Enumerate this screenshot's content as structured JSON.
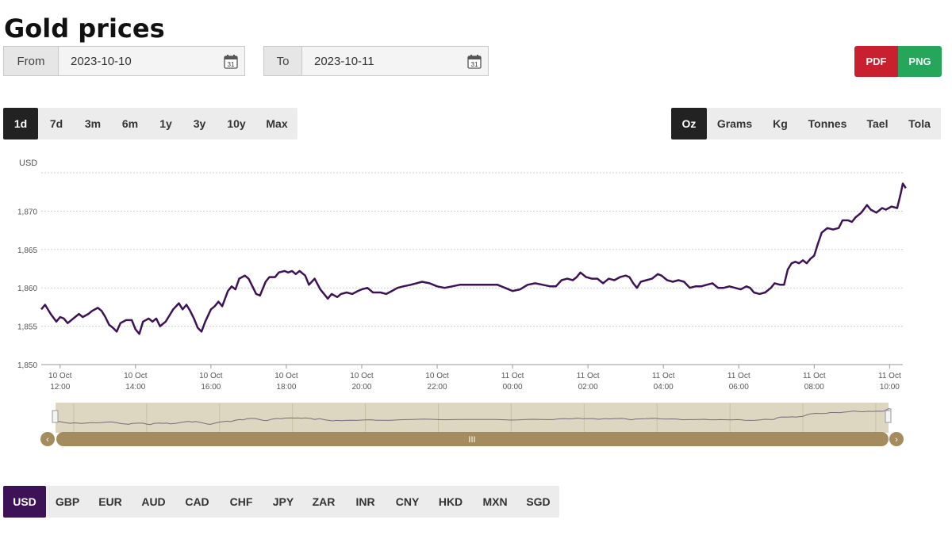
{
  "page": {
    "title": "Gold prices"
  },
  "date_range": {
    "from_label": "From",
    "from_value": "2023-10-10",
    "to_label": "To",
    "to_value": "2023-10-11",
    "calendar_day": "31"
  },
  "export": {
    "pdf_label": "PDF",
    "png_label": "PNG"
  },
  "periods": {
    "items": [
      "1d",
      "7d",
      "3m",
      "6m",
      "1y",
      "3y",
      "10y",
      "Max"
    ],
    "active": "1d"
  },
  "units": {
    "items": [
      "Oz",
      "Grams",
      "Kg",
      "Tonnes",
      "Tael",
      "Tola"
    ],
    "active": "Oz"
  },
  "currencies": {
    "items": [
      "USD",
      "GBP",
      "EUR",
      "AUD",
      "CAD",
      "CHF",
      "JPY",
      "ZAR",
      "INR",
      "CNY",
      "HKD",
      "MXN",
      "SGD"
    ],
    "active": "USD"
  },
  "navigator": {
    "handle_label": "III",
    "left_arrow": "‹",
    "right_arrow": "›"
  },
  "chart_data": {
    "type": "line",
    "ylabel": "USD",
    "ylim": [
      1850,
      1875
    ],
    "yticks": [
      1850,
      1855,
      1860,
      1865,
      1870
    ],
    "ytick_labels": [
      "1,850",
      "1,855",
      "1,860",
      "1,865",
      "1,870"
    ],
    "xlim": [
      11.5,
      34.35
    ],
    "xticks": [
      {
        "t": 12,
        "date": "10 Oct",
        "time": "12:00"
      },
      {
        "t": 14,
        "date": "10 Oct",
        "time": "14:00"
      },
      {
        "t": 16,
        "date": "10 Oct",
        "time": "16:00"
      },
      {
        "t": 18,
        "date": "10 Oct",
        "time": "18:00"
      },
      {
        "t": 20,
        "date": "10 Oct",
        "time": "20:00"
      },
      {
        "t": 22,
        "date": "10 Oct",
        "time": "22:00"
      },
      {
        "t": 24,
        "date": "11 Oct",
        "time": "00:00"
      },
      {
        "t": 26,
        "date": "11 Oct",
        "time": "02:00"
      },
      {
        "t": 28,
        "date": "11 Oct",
        "time": "04:00"
      },
      {
        "t": 30,
        "date": "11 Oct",
        "time": "06:00"
      },
      {
        "t": 32,
        "date": "11 Oct",
        "time": "08:00"
      },
      {
        "t": 34,
        "date": "11 Oct",
        "time": "10:00"
      }
    ],
    "grid": true,
    "series": [
      {
        "color": "#3d1257",
        "points": [
          [
            11.5,
            1857.2
          ],
          [
            11.6,
            1857.8
          ],
          [
            11.75,
            1856.6
          ],
          [
            11.9,
            1855.6
          ],
          [
            12.0,
            1856.2
          ],
          [
            12.1,
            1856.0
          ],
          [
            12.2,
            1855.4
          ],
          [
            12.35,
            1856.0
          ],
          [
            12.5,
            1856.6
          ],
          [
            12.6,
            1856.2
          ],
          [
            12.75,
            1856.6
          ],
          [
            12.85,
            1857.0
          ],
          [
            13.0,
            1857.4
          ],
          [
            13.1,
            1857.0
          ],
          [
            13.2,
            1856.2
          ],
          [
            13.3,
            1855.2
          ],
          [
            13.4,
            1854.8
          ],
          [
            13.5,
            1854.3
          ],
          [
            13.6,
            1855.4
          ],
          [
            13.75,
            1855.8
          ],
          [
            13.9,
            1855.8
          ],
          [
            14.0,
            1854.6
          ],
          [
            14.1,
            1854.0
          ],
          [
            14.2,
            1855.6
          ],
          [
            14.35,
            1856.0
          ],
          [
            14.45,
            1855.6
          ],
          [
            14.55,
            1856.0
          ],
          [
            14.65,
            1855.0
          ],
          [
            14.8,
            1855.6
          ],
          [
            14.9,
            1856.4
          ],
          [
            15.0,
            1857.2
          ],
          [
            15.15,
            1858.0
          ],
          [
            15.25,
            1857.2
          ],
          [
            15.35,
            1857.8
          ],
          [
            15.45,
            1857.0
          ],
          [
            15.55,
            1856.0
          ],
          [
            15.65,
            1854.8
          ],
          [
            15.75,
            1854.3
          ],
          [
            15.85,
            1855.6
          ],
          [
            16.0,
            1857.2
          ],
          [
            16.1,
            1857.6
          ],
          [
            16.2,
            1858.2
          ],
          [
            16.3,
            1857.6
          ],
          [
            16.45,
            1859.6
          ],
          [
            16.55,
            1860.2
          ],
          [
            16.65,
            1859.8
          ],
          [
            16.75,
            1861.2
          ],
          [
            16.9,
            1861.6
          ],
          [
            17.0,
            1861.2
          ],
          [
            17.1,
            1860.2
          ],
          [
            17.2,
            1859.2
          ],
          [
            17.3,
            1859.0
          ],
          [
            17.45,
            1860.8
          ],
          [
            17.55,
            1861.4
          ],
          [
            17.7,
            1861.4
          ],
          [
            17.8,
            1862.0
          ],
          [
            17.95,
            1862.2
          ],
          [
            18.05,
            1862.0
          ],
          [
            18.15,
            1862.2
          ],
          [
            18.25,
            1861.8
          ],
          [
            18.35,
            1862.2
          ],
          [
            18.5,
            1861.6
          ],
          [
            18.6,
            1860.4
          ],
          [
            18.75,
            1861.2
          ],
          [
            18.9,
            1859.8
          ],
          [
            19.0,
            1859.2
          ],
          [
            19.1,
            1858.6
          ],
          [
            19.2,
            1859.2
          ],
          [
            19.35,
            1858.8
          ],
          [
            19.45,
            1859.2
          ],
          [
            19.6,
            1859.4
          ],
          [
            19.75,
            1859.2
          ],
          [
            19.9,
            1859.6
          ],
          [
            20.0,
            1859.8
          ],
          [
            20.15,
            1860.0
          ],
          [
            20.3,
            1859.4
          ],
          [
            20.5,
            1859.4
          ],
          [
            20.65,
            1859.2
          ],
          [
            20.8,
            1859.6
          ],
          [
            20.95,
            1860.0
          ],
          [
            21.1,
            1860.2
          ],
          [
            21.3,
            1860.4
          ],
          [
            21.45,
            1860.6
          ],
          [
            21.6,
            1860.8
          ],
          [
            21.8,
            1860.6
          ],
          [
            22.0,
            1860.2
          ],
          [
            22.2,
            1860.0
          ],
          [
            22.4,
            1860.2
          ],
          [
            22.6,
            1860.4
          ],
          [
            22.8,
            1860.4
          ],
          [
            23.0,
            1860.4
          ],
          [
            23.2,
            1860.4
          ],
          [
            23.4,
            1860.4
          ],
          [
            23.6,
            1860.4
          ],
          [
            23.8,
            1860.0
          ],
          [
            24.0,
            1859.6
          ],
          [
            24.2,
            1859.8
          ],
          [
            24.4,
            1860.4
          ],
          [
            24.6,
            1860.6
          ],
          [
            24.8,
            1860.4
          ],
          [
            25.0,
            1860.2
          ],
          [
            25.15,
            1860.2
          ],
          [
            25.3,
            1861.0
          ],
          [
            25.45,
            1861.2
          ],
          [
            25.6,
            1861.0
          ],
          [
            25.7,
            1861.4
          ],
          [
            25.8,
            1862.0
          ],
          [
            25.95,
            1861.4
          ],
          [
            26.1,
            1861.2
          ],
          [
            26.25,
            1861.2
          ],
          [
            26.4,
            1860.6
          ],
          [
            26.55,
            1861.2
          ],
          [
            26.7,
            1861.0
          ],
          [
            26.85,
            1861.4
          ],
          [
            27.0,
            1861.6
          ],
          [
            27.1,
            1861.4
          ],
          [
            27.2,
            1860.6
          ],
          [
            27.3,
            1860.0
          ],
          [
            27.4,
            1860.8
          ],
          [
            27.55,
            1861.0
          ],
          [
            27.7,
            1861.2
          ],
          [
            27.85,
            1861.8
          ],
          [
            27.95,
            1861.6
          ],
          [
            28.1,
            1861.0
          ],
          [
            28.25,
            1860.8
          ],
          [
            28.4,
            1861.0
          ],
          [
            28.55,
            1860.8
          ],
          [
            28.7,
            1860.0
          ],
          [
            28.85,
            1860.2
          ],
          [
            29.0,
            1860.2
          ],
          [
            29.15,
            1860.4
          ],
          [
            29.3,
            1860.6
          ],
          [
            29.45,
            1860.0
          ],
          [
            29.6,
            1860.0
          ],
          [
            29.75,
            1860.2
          ],
          [
            29.9,
            1860.0
          ],
          [
            30.05,
            1859.8
          ],
          [
            30.2,
            1860.2
          ],
          [
            30.3,
            1860.0
          ],
          [
            30.4,
            1859.4
          ],
          [
            30.55,
            1859.2
          ],
          [
            30.7,
            1859.4
          ],
          [
            30.85,
            1860.0
          ],
          [
            30.95,
            1860.6
          ],
          [
            31.1,
            1860.4
          ],
          [
            31.2,
            1860.4
          ],
          [
            31.3,
            1862.4
          ],
          [
            31.4,
            1863.2
          ],
          [
            31.5,
            1863.4
          ],
          [
            31.6,
            1863.2
          ],
          [
            31.7,
            1863.6
          ],
          [
            31.8,
            1863.2
          ],
          [
            31.9,
            1863.8
          ],
          [
            32.0,
            1864.2
          ],
          [
            32.1,
            1865.8
          ],
          [
            32.2,
            1867.2
          ],
          [
            32.35,
            1867.8
          ],
          [
            32.5,
            1867.6
          ],
          [
            32.65,
            1867.8
          ],
          [
            32.75,
            1868.8
          ],
          [
            32.9,
            1868.8
          ],
          [
            33.0,
            1868.6
          ],
          [
            33.1,
            1869.2
          ],
          [
            33.25,
            1869.8
          ],
          [
            33.4,
            1870.8
          ],
          [
            33.5,
            1870.2
          ],
          [
            33.65,
            1869.8
          ],
          [
            33.8,
            1870.4
          ],
          [
            33.9,
            1870.2
          ],
          [
            34.05,
            1870.6
          ],
          [
            34.2,
            1870.4
          ],
          [
            34.3,
            1872.4
          ],
          [
            34.35,
            1873.6
          ],
          [
            34.43,
            1873.0
          ]
        ]
      }
    ]
  }
}
